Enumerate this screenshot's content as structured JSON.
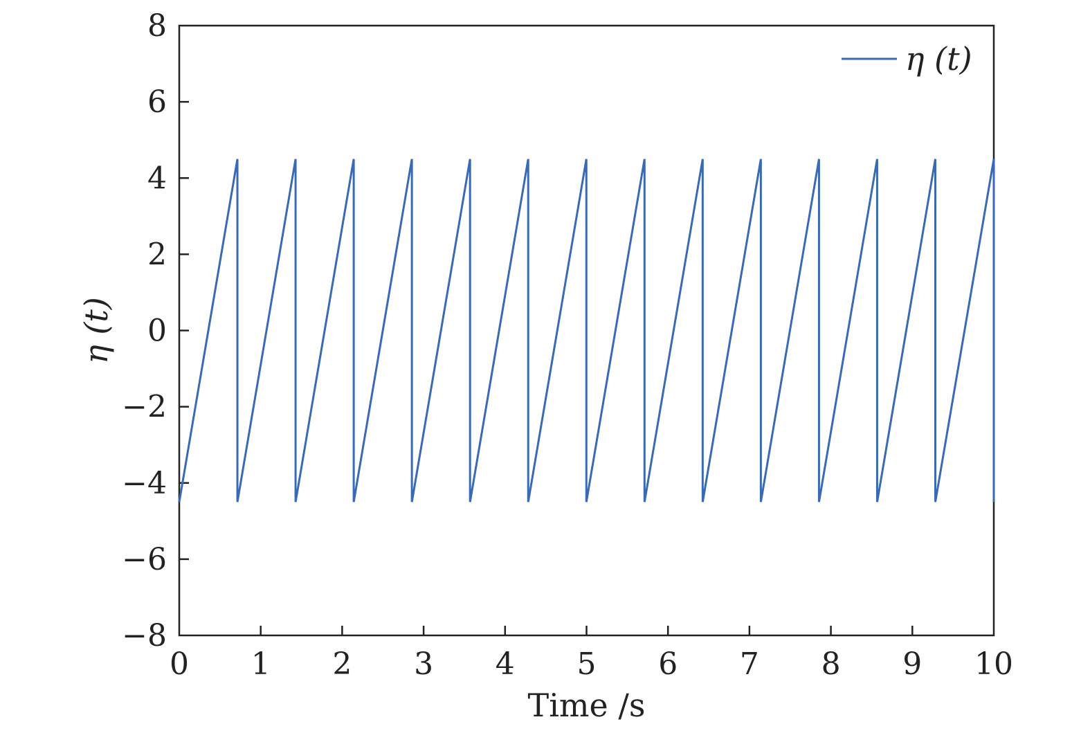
{
  "chart_data": {
    "type": "line",
    "title": "",
    "xlabel": "Time /s",
    "ylabel": "η (t)",
    "xlim": [
      0,
      10
    ],
    "ylim": [
      -8,
      8
    ],
    "xticks": [
      0,
      1,
      2,
      3,
      4,
      5,
      6,
      7,
      8,
      9,
      10
    ],
    "xtick_labels": [
      "0",
      "1",
      "2",
      "3",
      "4",
      "5",
      "6",
      "7",
      "8",
      "9",
      "10"
    ],
    "yticks": [
      -8,
      -6,
      -4,
      -2,
      0,
      2,
      4,
      6,
      8
    ],
    "ytick_labels": [
      "−8",
      "−6",
      "−4",
      "−2",
      "0",
      "2",
      "4",
      "6",
      "8"
    ],
    "grid": false,
    "legend_position": "top-right",
    "series": [
      {
        "name": "η (t)",
        "color": "#3a6ab4",
        "description_period_s": 0.714,
        "x": [
          0,
          0.714,
          0.714,
          1.428,
          1.428,
          2.142,
          2.142,
          2.856,
          2.856,
          3.57,
          3.57,
          4.284,
          4.284,
          4.998,
          4.998,
          5.712,
          5.712,
          6.426,
          6.426,
          7.14,
          7.14,
          7.854,
          7.854,
          8.568,
          8.568,
          9.282,
          9.282,
          10.0,
          10.0
        ],
        "y": [
          -4.5,
          4.5,
          -4.5,
          4.5,
          -4.5,
          4.5,
          -4.5,
          4.5,
          -4.5,
          4.5,
          -4.5,
          4.5,
          -4.5,
          4.5,
          -4.5,
          4.5,
          -4.5,
          4.5,
          -4.5,
          4.5,
          -4.5,
          4.5,
          -4.5,
          4.5,
          -4.5,
          4.5,
          -4.5,
          4.5,
          -4.5
        ]
      }
    ]
  }
}
